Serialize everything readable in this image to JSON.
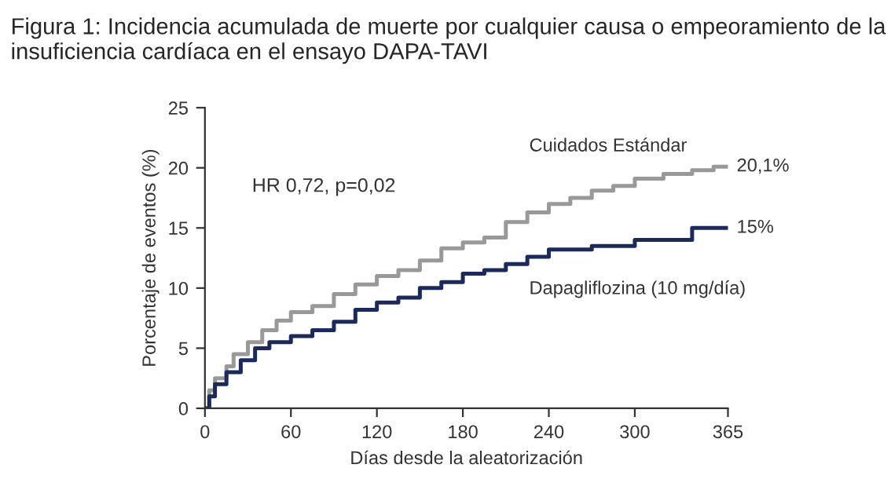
{
  "chart_data": {
    "type": "step",
    "title": "Figura 1: Incidencia acumulada de muerte por cualquier causa o empeoramiento de la insuficiencia cardíaca en el ensayo DAPA-TAVI",
    "xlabel": "Días desde la aleatorización",
    "ylabel": "Porcentaje de eventos (%)",
    "xlim": [
      0,
      365
    ],
    "xticks": [
      0,
      60,
      120,
      180,
      240,
      300,
      365
    ],
    "ylim": [
      0,
      25
    ],
    "yticks": [
      0,
      5,
      10,
      15,
      20,
      25
    ],
    "grid": false,
    "legend": false,
    "series": [
      {
        "name": "Cuidados Estándar",
        "color": "#999999",
        "x": [
          0,
          3,
          7,
          15,
          20,
          30,
          40,
          50,
          60,
          75,
          90,
          105,
          120,
          135,
          150,
          165,
          180,
          195,
          210,
          225,
          240,
          255,
          270,
          285,
          300,
          320,
          340,
          355,
          365
        ],
        "values": [
          0,
          1.5,
          2.5,
          3.5,
          4.5,
          5.5,
          6.5,
          7.3,
          8,
          8.5,
          9.5,
          10.3,
          11,
          11.5,
          12.3,
          13.3,
          13.8,
          14.2,
          15.5,
          16.3,
          17,
          17.5,
          18.1,
          18.5,
          19.1,
          19.5,
          19.8,
          20.1,
          20.1
        ]
      },
      {
        "name": "Dapagliflozina (10 mg/día)",
        "color": "#1b2a5a",
        "x": [
          0,
          3,
          7,
          15,
          25,
          35,
          45,
          60,
          75,
          90,
          105,
          120,
          135,
          150,
          165,
          180,
          195,
          210,
          225,
          240,
          270,
          300,
          340,
          365
        ],
        "values": [
          0,
          1,
          2,
          3,
          4,
          5,
          5.5,
          6,
          6.5,
          7.2,
          8.2,
          8.8,
          9.2,
          10,
          10.5,
          11.2,
          11.5,
          12,
          12.6,
          13.2,
          13.5,
          14,
          15,
          15
        ]
      }
    ],
    "annotations": [
      "HR 0,72, p=0,02",
      {
        "text": "20,1%",
        "x": 365,
        "y": 20.1
      },
      {
        "text": "15%",
        "x": 365,
        "y": 15
      }
    ]
  }
}
